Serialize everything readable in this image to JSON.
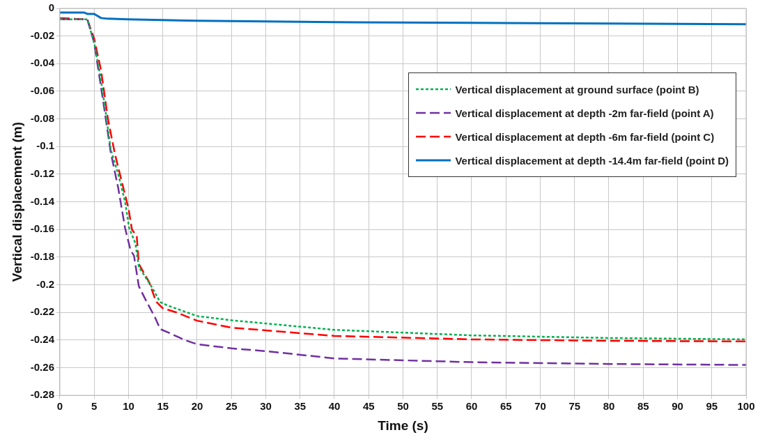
{
  "chart_data": {
    "type": "line",
    "xlabel": "Time (s)",
    "ylabel": "Vertical displacement (m)",
    "xlim": [
      0,
      100
    ],
    "xticks": [
      0,
      5,
      10,
      15,
      20,
      25,
      30,
      35,
      40,
      45,
      50,
      55,
      60,
      65,
      70,
      75,
      80,
      85,
      90,
      95,
      100
    ],
    "ylim": [
      -0.28,
      0
    ],
    "yticks": [
      0,
      -0.02,
      -0.04,
      -0.06,
      -0.08,
      -0.1,
      -0.12,
      -0.14,
      -0.16,
      -0.18,
      -0.2,
      -0.22,
      -0.24,
      -0.26,
      -0.28
    ],
    "grid": true,
    "legend": "top right",
    "marker": "none",
    "series": [
      {
        "name": "Vertical displacement at ground surface (point B)",
        "color": "#00b050",
        "line_style": "dotted",
        "x": [
          0,
          4,
          5,
          5.9,
          6.7,
          7.4,
          8.5,
          9.5,
          10.1,
          11,
          11.5,
          13.5,
          14.6,
          15.7,
          20,
          25,
          30,
          40,
          60,
          80,
          100
        ],
        "values": [
          -0.008,
          -0.008,
          -0.025,
          -0.049,
          -0.076,
          -0.102,
          -0.12,
          -0.14,
          -0.159,
          -0.17,
          -0.187,
          -0.2025,
          -0.2125,
          -0.215,
          -0.2226,
          -0.2257,
          -0.228,
          -0.2326,
          -0.2366,
          -0.2385,
          -0.2395
        ]
      },
      {
        "name": "Vertical displacement at depth -2m far-field (point A)",
        "color": "#7030a0",
        "line_style": "dashed",
        "x": [
          0,
          4,
          5,
          6.3,
          7.4,
          8.5,
          9.5,
          10.3,
          10.8,
          11.5,
          12.4,
          13.9,
          14.6,
          16,
          18.2,
          20,
          25,
          30,
          40,
          60,
          80,
          100
        ],
        "values": [
          -0.008,
          -0.008,
          -0.025,
          -0.067,
          -0.104,
          -0.13,
          -0.159,
          -0.175,
          -0.179,
          -0.201,
          -0.21,
          -0.224,
          -0.232,
          -0.235,
          -0.24,
          -0.243,
          -0.246,
          -0.248,
          -0.2533,
          -0.256,
          -0.2573,
          -0.258
        ]
      },
      {
        "name": "Vertical displacement at depth -6m far-field (point C)",
        "color": "#ff0000",
        "line_style": "dashed",
        "x": [
          0,
          4,
          5,
          6,
          7,
          8,
          9,
          10,
          10.5,
          11.2,
          11.5,
          13,
          14,
          15,
          17,
          20,
          25,
          30,
          40,
          60,
          80,
          100
        ],
        "values": [
          -0.007,
          -0.008,
          -0.022,
          -0.045,
          -0.08,
          -0.105,
          -0.125,
          -0.145,
          -0.16,
          -0.165,
          -0.185,
          -0.198,
          -0.212,
          -0.217,
          -0.22,
          -0.226,
          -0.231,
          -0.233,
          -0.237,
          -0.2395,
          -0.2405,
          -0.241
        ]
      },
      {
        "name": "Vertical displacement at depth -14.4m far-field (point D)",
        "color": "#0070c0",
        "line_style": "solid",
        "x": [
          0,
          3.5,
          4,
          5,
          6,
          7,
          10,
          20,
          40,
          60,
          80,
          100
        ],
        "values": [
          -0.003,
          -0.003,
          -0.004,
          -0.004,
          -0.007,
          -0.0075,
          -0.008,
          -0.009,
          -0.01,
          -0.0105,
          -0.011,
          -0.0115
        ]
      }
    ]
  }
}
